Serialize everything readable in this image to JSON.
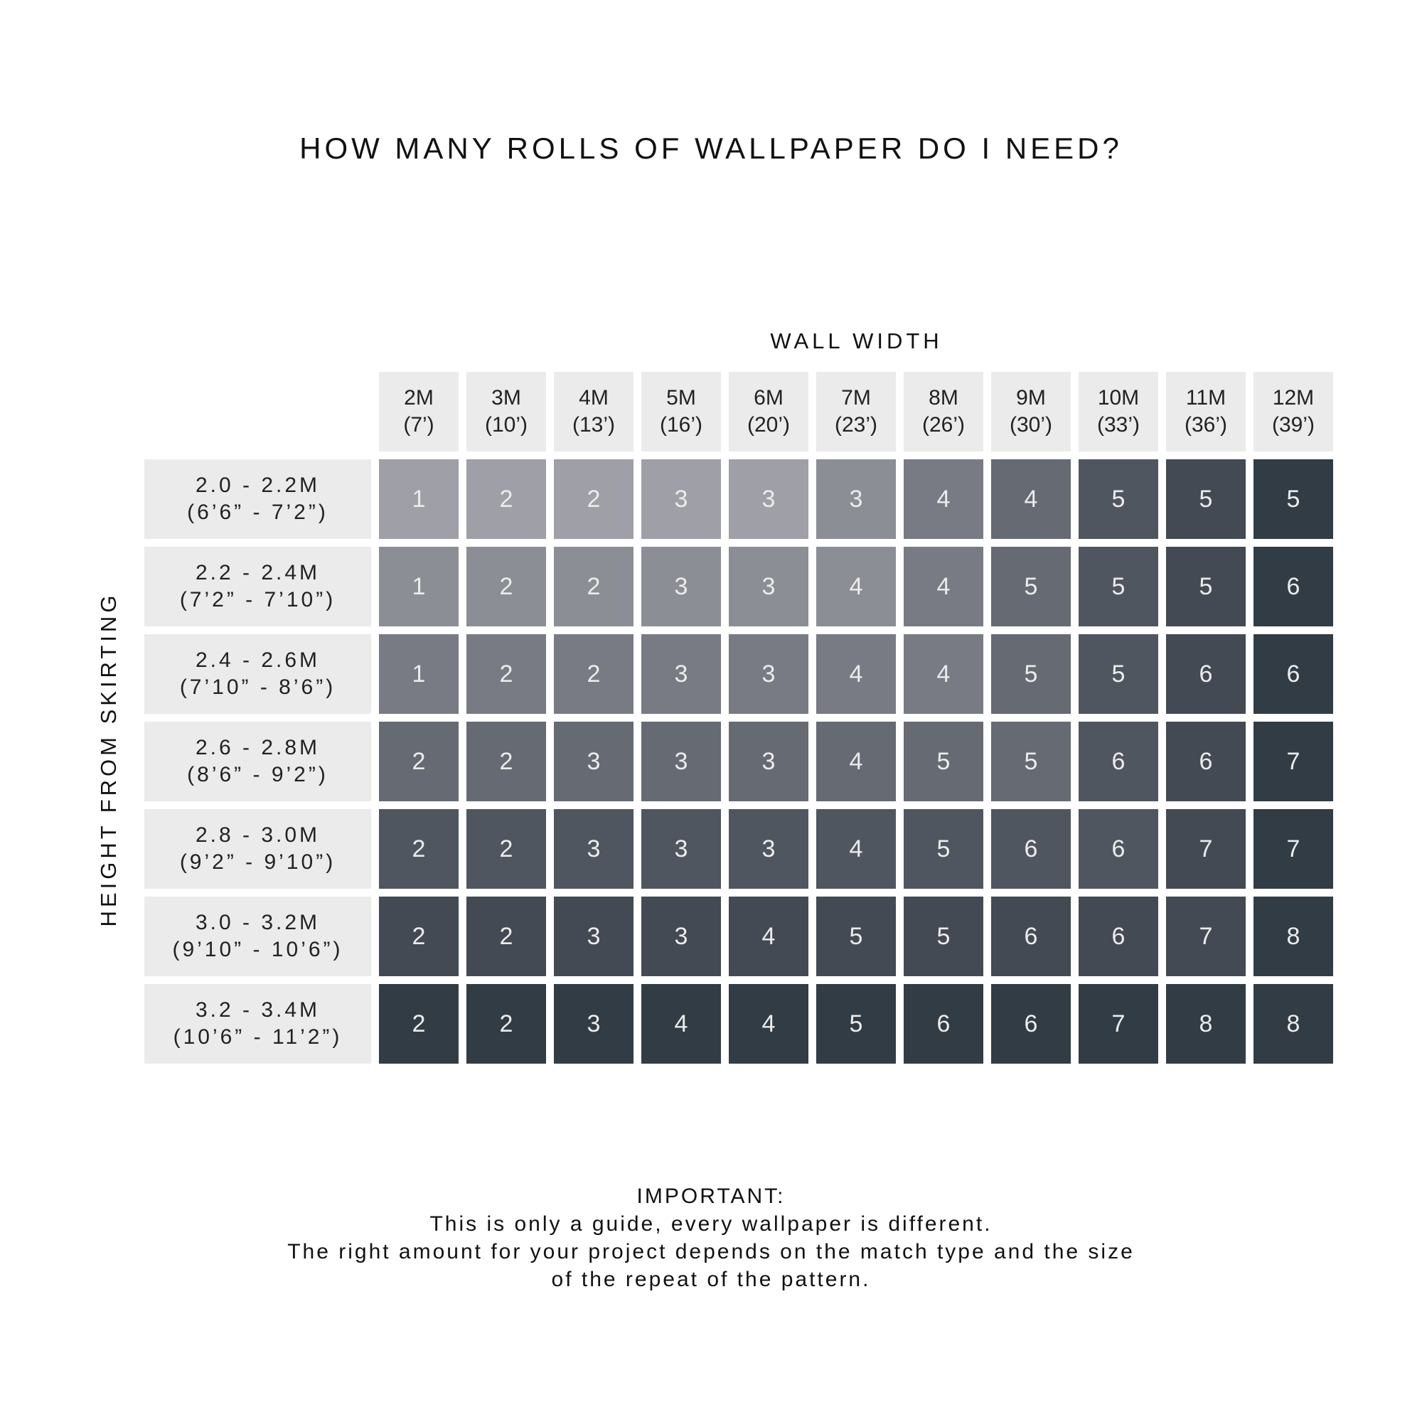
{
  "title": "HOW MANY ROLLS OF WALLPAPER DO I NEED?",
  "x_axis_label": "WALL WIDTH",
  "y_axis_label": "HEIGHT FROM SKIRTING",
  "columns": [
    {
      "metric": "2M",
      "imperial": "(7’)"
    },
    {
      "metric": "3M",
      "imperial": "(10’)"
    },
    {
      "metric": "4M",
      "imperial": "(13’)"
    },
    {
      "metric": "5M",
      "imperial": "(16’)"
    },
    {
      "metric": "6M",
      "imperial": "(20’)"
    },
    {
      "metric": "7M",
      "imperial": "(23’)"
    },
    {
      "metric": "8M",
      "imperial": "(26’)"
    },
    {
      "metric": "9M",
      "imperial": "(30’)"
    },
    {
      "metric": "10M",
      "imperial": "(33’)"
    },
    {
      "metric": "11M",
      "imperial": "(36’)"
    },
    {
      "metric": "12M",
      "imperial": "(39’)"
    }
  ],
  "rows": [
    {
      "metric": "2.0 - 2.2M",
      "imperial": "(6’6” - 7’2”)",
      "values": [
        1,
        2,
        2,
        3,
        3,
        3,
        4,
        4,
        5,
        5,
        5
      ],
      "shades": [
        0,
        0,
        0,
        0,
        0,
        1,
        2,
        3,
        4,
        5,
        6
      ]
    },
    {
      "metric": "2.2 - 2.4M",
      "imperial": "(7’2” - 7’10”)",
      "values": [
        1,
        2,
        2,
        3,
        3,
        4,
        4,
        5,
        5,
        5,
        6
      ],
      "shades": [
        1,
        1,
        1,
        1,
        1,
        1,
        2,
        3,
        4,
        5,
        6
      ]
    },
    {
      "metric": "2.4 - 2.6M",
      "imperial": "(7’10” - 8’6”)",
      "values": [
        1,
        2,
        2,
        3,
        3,
        4,
        4,
        5,
        5,
        6,
        6
      ],
      "shades": [
        2,
        2,
        2,
        2,
        2,
        2,
        2,
        3,
        4,
        5,
        6
      ]
    },
    {
      "metric": "2.6 - 2.8M",
      "imperial": "(8’6” - 9’2”)",
      "values": [
        2,
        2,
        3,
        3,
        3,
        4,
        5,
        5,
        6,
        6,
        7
      ],
      "shades": [
        3,
        3,
        3,
        3,
        3,
        3,
        3,
        3,
        4,
        5,
        6
      ]
    },
    {
      "metric": "2.8 - 3.0M",
      "imperial": "(9’2” - 9’10”)",
      "values": [
        2,
        2,
        3,
        3,
        3,
        4,
        5,
        6,
        6,
        7,
        7
      ],
      "shades": [
        4,
        4,
        4,
        4,
        4,
        4,
        4,
        4,
        4,
        5,
        6
      ]
    },
    {
      "metric": "3.0 - 3.2M",
      "imperial": "(9’10” - 10’6”)",
      "values": [
        2,
        2,
        3,
        3,
        4,
        5,
        5,
        6,
        6,
        7,
        8
      ],
      "shades": [
        5,
        5,
        5,
        5,
        5,
        5,
        5,
        5,
        5,
        5,
        6
      ]
    },
    {
      "metric": "3.2 - 3.4M",
      "imperial": "(10’6” - 11’2”)",
      "values": [
        2,
        2,
        3,
        4,
        4,
        5,
        6,
        6,
        7,
        8,
        8
      ],
      "shades": [
        6,
        6,
        6,
        6,
        6,
        6,
        6,
        6,
        6,
        6,
        6
      ]
    }
  ],
  "palette": [
    "#9f9fa7",
    "#8c8e96",
    "#787b83",
    "#666a73",
    "#50565f",
    "#434a53",
    "#323c44"
  ],
  "label_background": "#ebebeb",
  "note": {
    "heading": "IMPORTANT:",
    "lines": [
      "This is only a guide, every wallpaper is different.",
      "The right amount for your project depends on the match type and the size",
      "of the repeat of the pattern."
    ]
  }
}
